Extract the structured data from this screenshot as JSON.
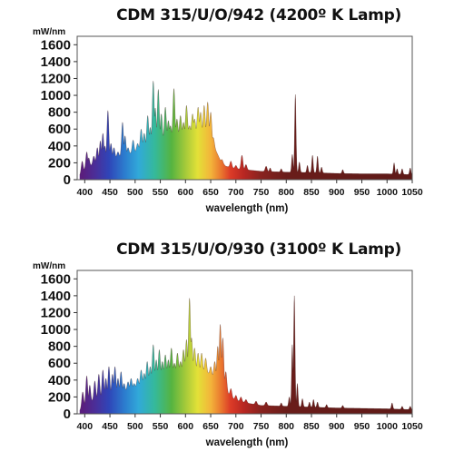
{
  "chart_data": [
    {
      "type": "area",
      "title": "CDM 315/U/O/942 (4200º K Lamp)",
      "ylabel": "mW/nm",
      "xlabel": "wavelength (nm)",
      "xlim": [
        385,
        1050
      ],
      "ylim": [
        0,
        1700
      ],
      "xticks": [
        "400",
        "450",
        "500",
        "550",
        "600",
        "650",
        "700",
        "750",
        "800",
        "850",
        "900",
        "950",
        "1000",
        "1050"
      ],
      "yticks": [
        "0",
        "200",
        "400",
        "600",
        "800",
        "1000",
        "1200",
        "1400",
        "1600"
      ],
      "grid": false,
      "legend": "none",
      "baseline_points": [
        [
          390,
          50
        ],
        [
          400,
          120
        ],
        [
          420,
          200
        ],
        [
          440,
          230
        ],
        [
          460,
          260
        ],
        [
          480,
          290
        ],
        [
          500,
          330
        ],
        [
          520,
          400
        ],
        [
          540,
          450
        ],
        [
          560,
          490
        ],
        [
          580,
          520
        ],
        [
          600,
          540
        ],
        [
          620,
          560
        ],
        [
          640,
          560
        ],
        [
          650,
          500
        ],
        [
          660,
          350
        ],
        [
          670,
          220
        ],
        [
          680,
          160
        ],
        [
          700,
          130
        ],
        [
          750,
          100
        ],
        [
          800,
          90
        ],
        [
          850,
          85
        ],
        [
          900,
          75
        ],
        [
          950,
          70
        ],
        [
          1000,
          70
        ],
        [
          1050,
          60
        ]
      ],
      "peaks": [
        [
          395,
          220
        ],
        [
          404,
          330
        ],
        [
          408,
          260
        ],
        [
          418,
          280
        ],
        [
          425,
          380
        ],
        [
          431,
          460
        ],
        [
          436,
          550
        ],
        [
          440,
          400
        ],
        [
          446,
          820
        ],
        [
          452,
          430
        ],
        [
          458,
          380
        ],
        [
          466,
          330
        ],
        [
          475,
          680
        ],
        [
          480,
          520
        ],
        [
          486,
          380
        ],
        [
          496,
          470
        ],
        [
          505,
          430
        ],
        [
          512,
          600
        ],
        [
          518,
          550
        ],
        [
          525,
          760
        ],
        [
          530,
          620
        ],
        [
          536,
          1170
        ],
        [
          540,
          850
        ],
        [
          546,
          1070
        ],
        [
          552,
          780
        ],
        [
          560,
          860
        ],
        [
          566,
          700
        ],
        [
          570,
          640
        ],
        [
          577,
          1080
        ],
        [
          583,
          720
        ],
        [
          590,
          760
        ],
        [
          596,
          680
        ],
        [
          602,
          880
        ],
        [
          608,
          640
        ],
        [
          614,
          780
        ],
        [
          618,
          720
        ],
        [
          625,
          860
        ],
        [
          630,
          800
        ],
        [
          637,
          880
        ],
        [
          644,
          920
        ],
        [
          650,
          800
        ],
        [
          655,
          500
        ],
        [
          672,
          240
        ],
        [
          690,
          220
        ],
        [
          700,
          170
        ],
        [
          712,
          290
        ],
        [
          720,
          180
        ],
        [
          760,
          160
        ],
        [
          768,
          140
        ],
        [
          790,
          130
        ],
        [
          812,
          300
        ],
        [
          818,
          1010
        ],
        [
          826,
          210
        ],
        [
          842,
          170
        ],
        [
          852,
          290
        ],
        [
          862,
          280
        ],
        [
          870,
          150
        ],
        [
          912,
          120
        ],
        [
          1014,
          200
        ],
        [
          1020,
          130
        ],
        [
          1030,
          130
        ],
        [
          1046,
          140
        ]
      ]
    },
    {
      "type": "area",
      "title": "CDM 315/U/O/930 (3100º K Lamp)",
      "ylabel": "mW/nm",
      "xlabel": "wavelength (nm)",
      "xlim": [
        385,
        1050
      ],
      "ylim": [
        0,
        1700
      ],
      "xticks": [
        "400",
        "450",
        "500",
        "550",
        "600",
        "650",
        "700",
        "750",
        "800",
        "850",
        "900",
        "950",
        "1000",
        "1050"
      ],
      "yticks": [
        "0",
        "200",
        "400",
        "600",
        "800",
        "1000",
        "1200",
        "1400",
        "1600"
      ],
      "grid": false,
      "legend": "none",
      "baseline_points": [
        [
          390,
          40
        ],
        [
          400,
          100
        ],
        [
          420,
          170
        ],
        [
          440,
          200
        ],
        [
          460,
          230
        ],
        [
          480,
          270
        ],
        [
          500,
          310
        ],
        [
          520,
          370
        ],
        [
          540,
          420
        ],
        [
          560,
          470
        ],
        [
          580,
          500
        ],
        [
          600,
          520
        ],
        [
          620,
          520
        ],
        [
          640,
          500
        ],
        [
          655,
          440
        ],
        [
          670,
          400
        ],
        [
          680,
          280
        ],
        [
          690,
          200
        ],
        [
          700,
          160
        ],
        [
          720,
          130
        ],
        [
          750,
          100
        ],
        [
          800,
          90
        ],
        [
          850,
          80
        ],
        [
          900,
          70
        ],
        [
          950,
          65
        ],
        [
          1000,
          60
        ],
        [
          1050,
          50
        ]
      ],
      "peaks": [
        [
          396,
          260
        ],
        [
          404,
          450
        ],
        [
          410,
          340
        ],
        [
          420,
          390
        ],
        [
          428,
          470
        ],
        [
          436,
          520
        ],
        [
          442,
          420
        ],
        [
          448,
          560
        ],
        [
          455,
          470
        ],
        [
          460,
          560
        ],
        [
          466,
          420
        ],
        [
          472,
          500
        ],
        [
          478,
          360
        ],
        [
          486,
          380
        ],
        [
          492,
          420
        ],
        [
          498,
          360
        ],
        [
          505,
          420
        ],
        [
          512,
          520
        ],
        [
          518,
          480
        ],
        [
          524,
          620
        ],
        [
          530,
          560
        ],
        [
          536,
          820
        ],
        [
          542,
          640
        ],
        [
          548,
          760
        ],
        [
          554,
          620
        ],
        [
          560,
          700
        ],
        [
          566,
          640
        ],
        [
          572,
          780
        ],
        [
          578,
          600
        ],
        [
          584,
          720
        ],
        [
          590,
          620
        ],
        [
          596,
          760
        ],
        [
          602,
          880
        ],
        [
          608,
          1370
        ],
        [
          612,
          900
        ],
        [
          618,
          780
        ],
        [
          625,
          720
        ],
        [
          632,
          720
        ],
        [
          640,
          660
        ],
        [
          650,
          560
        ],
        [
          658,
          620
        ],
        [
          664,
          800
        ],
        [
          669,
          1060
        ],
        [
          674,
          900
        ],
        [
          680,
          500
        ],
        [
          690,
          300
        ],
        [
          700,
          220
        ],
        [
          710,
          200
        ],
        [
          720,
          170
        ],
        [
          740,
          150
        ],
        [
          760,
          140
        ],
        [
          790,
          130
        ],
        [
          806,
          200
        ],
        [
          812,
          820
        ],
        [
          816,
          1400
        ],
        [
          822,
          360
        ],
        [
          832,
          180
        ],
        [
          846,
          140
        ],
        [
          854,
          170
        ],
        [
          862,
          140
        ],
        [
          880,
          110
        ],
        [
          912,
          100
        ],
        [
          1010,
          130
        ],
        [
          1030,
          90
        ],
        [
          1046,
          90
        ]
      ]
    }
  ]
}
